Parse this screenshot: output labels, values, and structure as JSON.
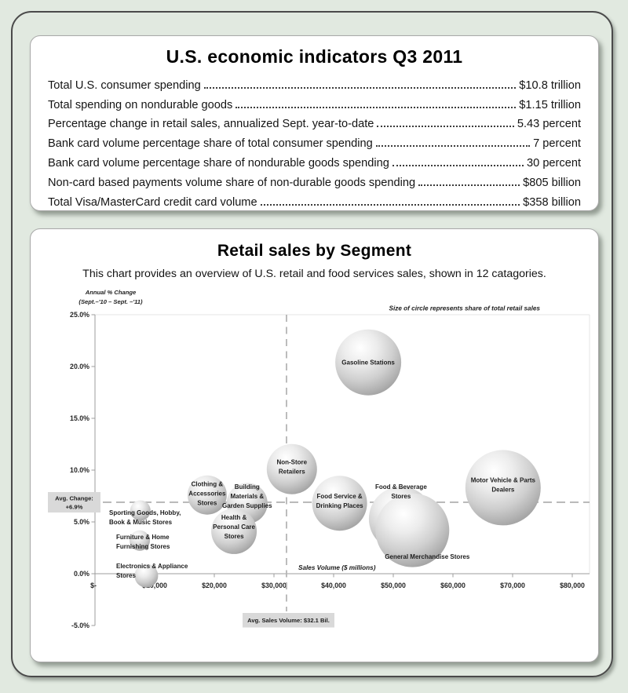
{
  "colors": {
    "background": "#e1e9e0",
    "panel": "#ffffff",
    "frame_border": "#4a4a4a",
    "annotation_box": "#d9d9d9",
    "dashed_line": "#b5b5b5",
    "axis_line": "#9c9c9c",
    "bubble_edge": "#9a9a9a",
    "bubble_text": "#1c1c1c"
  },
  "indicators": {
    "title": "U.S. economic indicators Q3 2011",
    "rows": [
      {
        "label": "Total U.S. consumer spending",
        "value": "$10.8 trillion"
      },
      {
        "label": "Total spending on nondurable goods",
        "value": "$1.15 trillion"
      },
      {
        "label": "Percentage change in retail sales, annualized Sept. year-to-date",
        "value": "5.43 percent"
      },
      {
        "label": "Bank card volume percentage share of total consumer spending",
        "value": "7 percent"
      },
      {
        "label": "Bank card volume percentage share of nondurable goods spending",
        "value": "30 percent"
      },
      {
        "label": "Non-card based payments volume share of non-durable goods spending",
        "value": "$805 billion"
      },
      {
        "label": "Total Visa/MasterCard credit card volume",
        "value": "$358 billion"
      }
    ]
  },
  "chart": {
    "title": "Retail sales by Segment",
    "subtitle": "This chart provides an overview of U.S. retail and food services sales, shown in 12 catagories."
  },
  "chart_data": {
    "type": "scatter",
    "title": "Retail sales by Segment",
    "subtitle": "This chart provides an overview of U.S. retail and food services sales, shown in 12 catagories.",
    "xlabel": "Sales Volume ($ millions)",
    "ylabel_lines": [
      "Annual % Change",
      "(Sept.–'10 – Sept. –'11)"
    ],
    "size_note": "Size of circle represents share of total retail sales",
    "xlim": [
      0,
      80000
    ],
    "ylim": [
      -5,
      25
    ],
    "x_ticks": [
      "$-",
      "$10,000",
      "$20,000",
      "$30,000",
      "$40,000",
      "$50,000",
      "$60,000",
      "$70,000",
      "$80,000"
    ],
    "x_tick_values": [
      0,
      10000,
      20000,
      30000,
      40000,
      50000,
      60000,
      70000,
      80000
    ],
    "y_ticks": [
      "25.0%",
      "20.0%",
      "15.0%",
      "10.0%",
      "5.0%",
      "0.0%",
      "-5.0%"
    ],
    "y_tick_values": [
      25,
      20,
      15,
      10,
      5,
      0,
      -5
    ],
    "grid": false,
    "avg_change_pct": 6.9,
    "avg_sales_volume_millions": 32100,
    "avg_change_box_lines": [
      "Avg. Change:",
      "+6.9%"
    ],
    "avg_sales_box_text": "Avg. Sales Volume: $32.1 Bil.",
    "points": [
      {
        "id": "gasoline",
        "name": "Gasoline Stations",
        "x": 45800,
        "y": 20.4,
        "r": 42,
        "label_lines": [
          "Gasoline Stations"
        ]
      },
      {
        "id": "motor",
        "name": "Motor Vehicle & Parts Dealers",
        "x": 68400,
        "y": 8.3,
        "r": 48,
        "label_lines": [
          "Motor Vehicle & Parts",
          "Dealers"
        ]
      },
      {
        "id": "nonstore",
        "name": "Non-Store Retailers",
        "x": 33000,
        "y": 10.1,
        "r": 32,
        "label_lines": [
          "Non-Store",
          "Retailers"
        ]
      },
      {
        "id": "foodservice",
        "name": "Food Service & Drinking Places",
        "x": 41000,
        "y": 6.8,
        "r": 35,
        "label_lines": [
          "Food Service &",
          "Drinking Places"
        ]
      },
      {
        "id": "foodbev",
        "name": "Food & Beverage Stores",
        "x": 51300,
        "y": 5.3,
        "r": 41,
        "label_lines": [
          "Food & Beverage",
          "Stores"
        ]
      },
      {
        "id": "genmerch",
        "name": "General Merchandise Stores",
        "x": 53200,
        "y": 4.2,
        "r": 47,
        "label_lines": [
          "General Merchandise Stores"
        ]
      },
      {
        "id": "building",
        "name": "Building Materials & Garden Supplies",
        "x": 25500,
        "y": 6.8,
        "r": 26,
        "label_lines": [
          "Building",
          "Materials &",
          "Garden Supplies"
        ]
      },
      {
        "id": "clothing",
        "name": "Clothing & Accessories Stores",
        "x": 18800,
        "y": 7.6,
        "r": 25,
        "label_lines": [
          "Clothing &",
          "Accessories",
          "Stores"
        ]
      },
      {
        "id": "health",
        "name": "Health & Personal Care Stores",
        "x": 23300,
        "y": 4.1,
        "r": 29,
        "label_lines": [
          "Health &",
          "Personal Care",
          "Stores"
        ]
      },
      {
        "id": "sporting",
        "name": "Sporting Goods, Hobby, Book & Music Stores",
        "x": 7600,
        "y": 6.1,
        "r": 13,
        "label_lines": [
          "Sporting Goods, Hobby,",
          "Book & Music Stores"
        ]
      },
      {
        "id": "furniture",
        "name": "Furniture & Home Furnishing Stores",
        "x": 7500,
        "y": 3.2,
        "r": 13,
        "label_lines": [
          "Furniture & Home",
          "Furnishing Stores"
        ]
      },
      {
        "id": "electronics",
        "name": "Electronics & Appliance Stores",
        "x": 8600,
        "y": -0.2,
        "r": 15,
        "label_lines": [
          "Electronics & Appliance",
          "Stores"
        ]
      }
    ]
  }
}
